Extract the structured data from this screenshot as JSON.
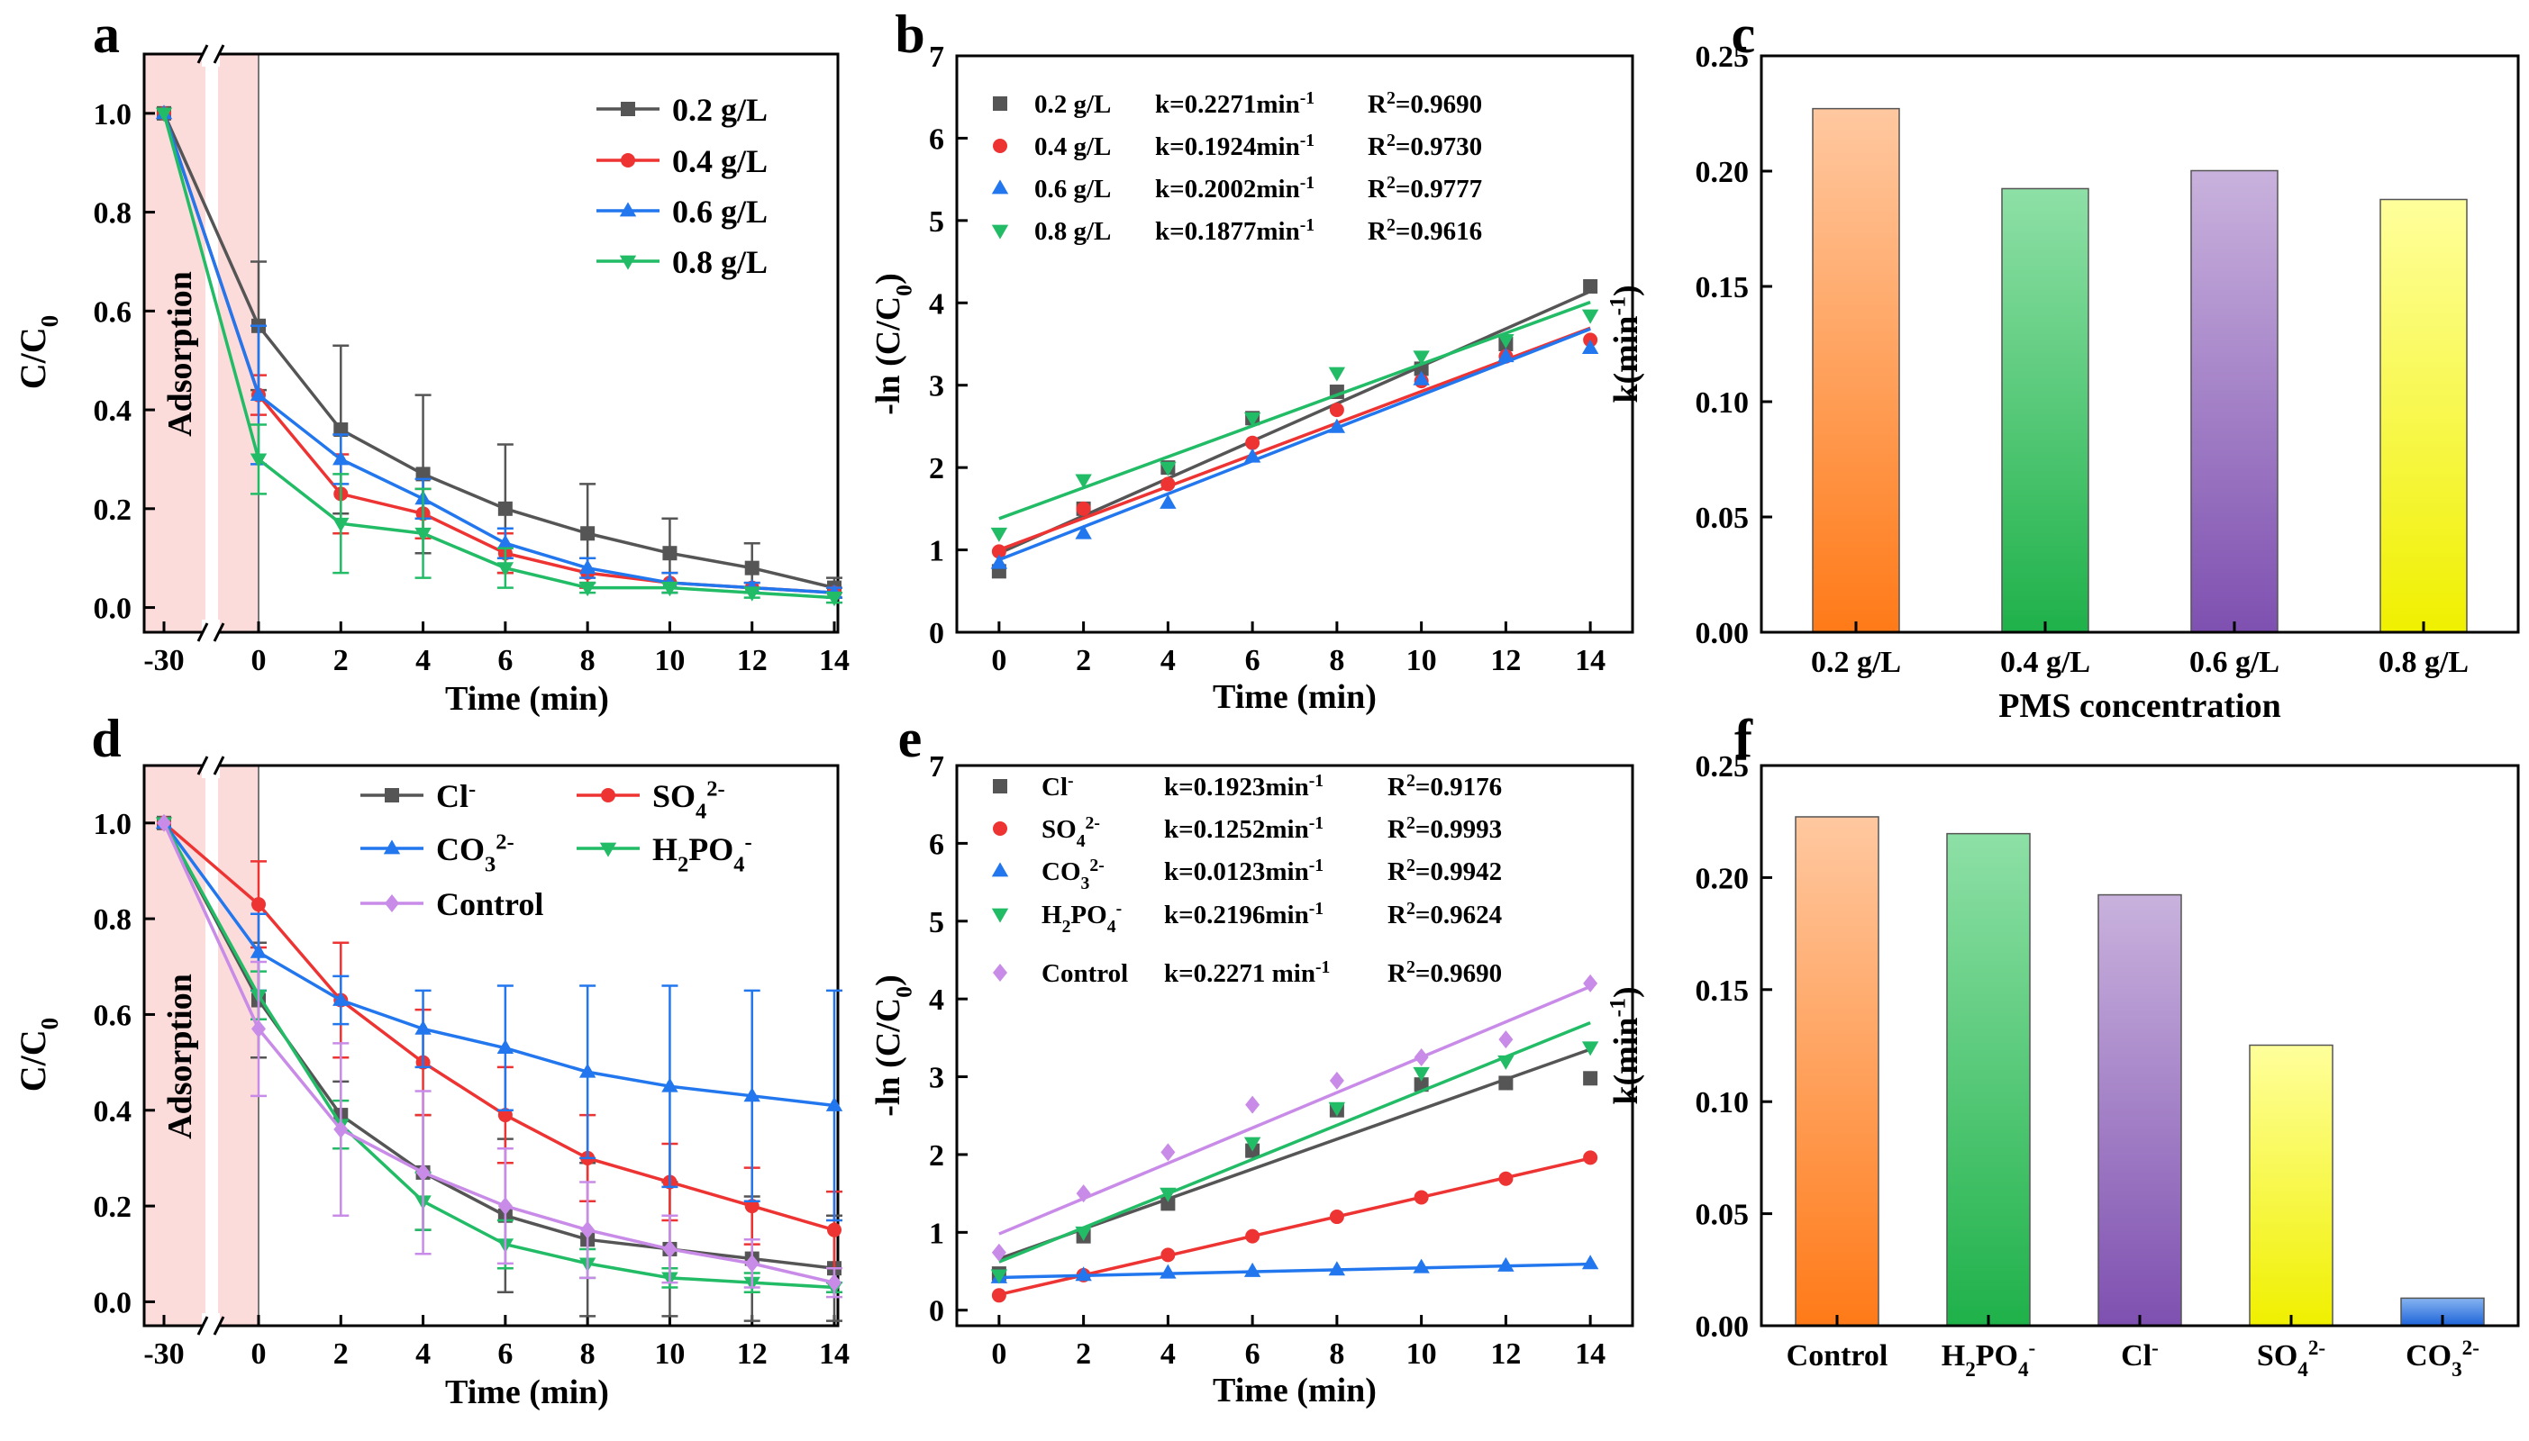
{
  "chart_data": [
    {
      "panel": "a",
      "type": "line",
      "xlabel": "Time (min)",
      "ylabel": "C/C0",
      "ylabel_main": "C/C",
      "ylabel_sub": "0",
      "x_break": true,
      "x": [
        -30,
        0,
        2,
        4,
        6,
        8,
        10,
        12,
        14
      ],
      "x_ticks": [
        -30,
        0,
        2,
        4,
        6,
        8,
        10,
        12,
        14
      ],
      "y_ticks": [
        0.0,
        0.2,
        0.4,
        0.6,
        0.8,
        1.0
      ],
      "y_tick_labels": [
        "0.0",
        "0.2",
        "0.4",
        "0.6",
        "0.8",
        "1.0"
      ],
      "ylim": [
        -0.05,
        1.12
      ],
      "shade_label": "Adsorption",
      "legend_position": "top-right",
      "series": [
        {
          "name": "0.2 g/L",
          "color": "#555555",
          "marker": "square",
          "values": [
            1.0,
            0.57,
            0.36,
            0.27,
            0.2,
            0.15,
            0.11,
            0.08,
            0.04
          ],
          "errors": [
            0,
            0.13,
            0.17,
            0.16,
            0.13,
            0.1,
            0.07,
            0.05,
            0.02
          ]
        },
        {
          "name": "0.4 g/L",
          "color": "#ee3333",
          "marker": "circle",
          "values": [
            1.0,
            0.43,
            0.23,
            0.19,
            0.11,
            0.07,
            0.05,
            0.04,
            0.03
          ],
          "errors": [
            0,
            0.04,
            0.08,
            0.05,
            0.04,
            0.03,
            0.02,
            0.01,
            0.01
          ]
        },
        {
          "name": "0.6 g/L",
          "color": "#2277ee",
          "marker": "triangle-up",
          "values": [
            1.0,
            0.43,
            0.3,
            0.22,
            0.13,
            0.08,
            0.05,
            0.04,
            0.03
          ],
          "errors": [
            0,
            0.14,
            0.05,
            0.04,
            0.03,
            0.02,
            0.02,
            0.01,
            0.01
          ]
        },
        {
          "name": "0.8 g/L",
          "color": "#22bb66",
          "marker": "triangle-down",
          "values": [
            1.0,
            0.3,
            0.17,
            0.15,
            0.08,
            0.04,
            0.04,
            0.03,
            0.02
          ],
          "errors": [
            0,
            0.07,
            0.1,
            0.09,
            0.04,
            0.01,
            0.01,
            0.01,
            0.01
          ]
        }
      ]
    },
    {
      "panel": "b",
      "type": "scatter",
      "xlabel": "Time (min)",
      "ylabel": "-ln (C/C0)",
      "ylabel_main": "-ln (C/C",
      "ylabel_sub": "0",
      "ylabel_end": ")",
      "x": [
        0,
        2,
        4,
        6,
        8,
        10,
        12,
        14
      ],
      "x_ticks": [
        0,
        2,
        4,
        6,
        8,
        10,
        12,
        14
      ],
      "y_ticks": [
        0,
        1,
        2,
        3,
        4,
        5,
        6,
        7
      ],
      "ylim": [
        0,
        7
      ],
      "xlim": [
        -1,
        15
      ],
      "legend_position": "top-left",
      "series": [
        {
          "name": "0.2 g/L",
          "color": "#555555",
          "marker": "square",
          "values": [
            0.74,
            1.5,
            2.0,
            2.6,
            2.92,
            3.2,
            3.5,
            4.2
          ],
          "fit": {
            "intercept": 0.96,
            "slope": 0.2271
          },
          "k": "k=0.2271min",
          "k_sup": "-1",
          "r2": "=0.9690"
        },
        {
          "name": "0.4 g/L",
          "color": "#ee3333",
          "marker": "circle",
          "values": [
            0.98,
            1.5,
            1.8,
            2.3,
            2.7,
            3.05,
            3.35,
            3.55
          ],
          "fit": {
            "intercept": 1.0,
            "slope": 0.1924
          },
          "k": "k=0.1924min",
          "k_sup": "-1",
          "r2": "=0.9730"
        },
        {
          "name": "0.6 g/L",
          "color": "#2277ee",
          "marker": "triangle-up",
          "values": [
            0.84,
            1.2,
            1.57,
            2.13,
            2.49,
            3.07,
            3.35,
            3.45
          ],
          "fit": {
            "intercept": 0.88,
            "slope": 0.2002
          },
          "k": "k=0.2002min",
          "k_sup": "-1",
          "r2": "=0.9777"
        },
        {
          "name": "0.8 g/L",
          "color": "#22bb66",
          "marker": "triangle-down",
          "values": [
            1.2,
            1.85,
            2.0,
            2.6,
            3.15,
            3.35,
            3.55,
            3.85
          ],
          "fit": {
            "intercept": 1.38,
            "slope": 0.1877
          },
          "k": "k=0.1877min",
          "k_sup": "-1",
          "r2": "=0.9616"
        }
      ]
    },
    {
      "panel": "c",
      "type": "bar",
      "xlabel": "PMS concentration",
      "ylabel": "k(min-1)",
      "ylabel_main": "k(min",
      "ylabel_sup": "-1",
      "ylabel_end": ")",
      "categories": [
        "0.2 g/L",
        "0.4 g/L",
        "0.6 g/L",
        "0.8 g/L"
      ],
      "values": [
        0.2271,
        0.1924,
        0.2002,
        0.1877
      ],
      "colors": [
        [
          "#ff7a18",
          "#ffc8a0"
        ],
        [
          "#1fb14a",
          "#8ee0a6"
        ],
        [
          "#7e50b0",
          "#c9b2dd"
        ],
        [
          "#f0f000",
          "#ffff9c"
        ]
      ],
      "y_ticks": [
        0.0,
        0.05,
        0.1,
        0.15,
        0.2,
        0.25
      ],
      "y_tick_labels": [
        "0.00",
        "0.05",
        "0.10",
        "0.15",
        "0.20",
        "0.25"
      ],
      "ylim": [
        0,
        0.25
      ]
    },
    {
      "panel": "d",
      "type": "line",
      "xlabel": "Time (min)",
      "ylabel": "C/C0",
      "ylabel_main": "C/C",
      "ylabel_sub": "0",
      "x_break": true,
      "x": [
        -30,
        0,
        2,
        4,
        6,
        8,
        10,
        12,
        14
      ],
      "x_ticks": [
        -30,
        0,
        2,
        4,
        6,
        8,
        10,
        12,
        14
      ],
      "y_ticks": [
        0.0,
        0.2,
        0.4,
        0.6,
        0.8,
        1.0
      ],
      "y_tick_labels": [
        "0.0",
        "0.2",
        "0.4",
        "0.6",
        "0.8",
        "1.0"
      ],
      "ylim": [
        -0.05,
        1.12
      ],
      "shade_label": "Adsorption",
      "legend_position": "top",
      "series": [
        {
          "name": "Cl",
          "sup": "-",
          "color": "#555555",
          "marker": "square",
          "values": [
            1.0,
            0.63,
            0.39,
            0.27,
            0.18,
            0.13,
            0.11,
            0.09,
            0.07
          ],
          "errors": [
            0,
            0.12,
            0.07,
            0.12,
            0.16,
            0.16,
            0.14,
            0.13,
            0.11
          ]
        },
        {
          "name": "SO",
          "sub": "4",
          "sup": "2-",
          "color": "#ee3333",
          "marker": "circle",
          "values": [
            1.0,
            0.83,
            0.63,
            0.5,
            0.39,
            0.3,
            0.25,
            0.2,
            0.15
          ],
          "errors": [
            0,
            0.09,
            0.12,
            0.11,
            0.1,
            0.09,
            0.08,
            0.08,
            0.08
          ]
        },
        {
          "name": "CO",
          "sub": "3",
          "sup": "2-",
          "color": "#2277ee",
          "marker": "triangle-up",
          "values": [
            1.0,
            0.73,
            0.63,
            0.57,
            0.53,
            0.48,
            0.45,
            0.43,
            0.41
          ],
          "errors": [
            0,
            0.08,
            0.05,
            0.08,
            0.13,
            0.18,
            0.21,
            0.22,
            0.24
          ]
        },
        {
          "name": "H",
          "sub": "2",
          "name2": "PO",
          "sub2": "4",
          "sup": "-",
          "color": "#22bb66",
          "marker": "triangle-down",
          "values": [
            1.0,
            0.64,
            0.37,
            0.21,
            0.12,
            0.08,
            0.05,
            0.04,
            0.03
          ],
          "errors": [
            0,
            0.05,
            0.05,
            0.06,
            0.05,
            0.03,
            0.02,
            0.02,
            0.01
          ]
        },
        {
          "name": "Control",
          "color": "#c98be8",
          "marker": "diamond",
          "values": [
            1.0,
            0.57,
            0.36,
            0.27,
            0.2,
            0.15,
            0.11,
            0.08,
            0.04
          ],
          "errors": [
            0,
            0.14,
            0.18,
            0.17,
            0.12,
            0.1,
            0.07,
            0.05,
            0.03
          ]
        }
      ]
    },
    {
      "panel": "e",
      "type": "scatter",
      "xlabel": "Time (min)",
      "ylabel": "-ln (C/C0)",
      "ylabel_main": "-ln (C/C",
      "ylabel_sub": "0",
      "ylabel_end": ")",
      "x": [
        0,
        2,
        4,
        6,
        8,
        10,
        12,
        14
      ],
      "x_ticks": [
        0,
        2,
        4,
        6,
        8,
        10,
        12,
        14
      ],
      "y_ticks": [
        0,
        1,
        2,
        3,
        4,
        5,
        6,
        7
      ],
      "ylim": [
        -0.2,
        7
      ],
      "xlim": [
        -1,
        15
      ],
      "legend_position": "top-left",
      "series": [
        {
          "name": "Cl",
          "sup": "-",
          "color": "#555555",
          "marker": "square",
          "values": [
            0.47,
            0.95,
            1.37,
            2.05,
            2.57,
            2.9,
            2.92,
            2.98
          ],
          "fit": {
            "intercept": 0.66,
            "slope": 0.1923
          },
          "k": "k=0.1923min",
          "k_sup": "-1",
          "r2": "=0.9176"
        },
        {
          "name": "SO",
          "sub": "4",
          "sup": "2-",
          "color": "#ee3333",
          "marker": "circle",
          "values": [
            0.19,
            0.45,
            0.71,
            0.95,
            1.2,
            1.45,
            1.69,
            1.96
          ],
          "fit": {
            "intercept": 0.2,
            "slope": 0.1252
          },
          "k": "k=0.1252min",
          "k_sup": "-1",
          "r2": "=0.9993"
        },
        {
          "name": "CO",
          "sub": "3",
          "sup": "2-",
          "color": "#2277ee",
          "marker": "triangle-up",
          "values": [
            0.42,
            0.45,
            0.48,
            0.5,
            0.52,
            0.55,
            0.57,
            0.6
          ],
          "fit": {
            "intercept": 0.42,
            "slope": 0.0123
          },
          "k": "k=0.0123min",
          "k_sup": "-1",
          "r2": "=0.9942"
        },
        {
          "name": "H",
          "sub": "2",
          "name2": "PO",
          "sub2": "4",
          "sup": "-",
          "color": "#22bb66",
          "marker": "triangle-down",
          "values": [
            0.45,
            1.0,
            1.5,
            2.15,
            2.6,
            3.05,
            3.2,
            3.38
          ],
          "fit": {
            "intercept": 0.62,
            "slope": 0.2196
          },
          "k": "k=0.2196min",
          "k_sup": "-1",
          "r2": "=0.9624"
        },
        {
          "name": "Control",
          "color": "#c98be8",
          "marker": "diamond",
          "values": [
            0.74,
            1.5,
            2.03,
            2.64,
            2.95,
            3.25,
            3.48,
            4.2
          ],
          "fit": {
            "intercept": 0.98,
            "slope": 0.2271
          },
          "k": "k=0.2271 min",
          "k_sup": "-1",
          "r2": "=0.9690"
        }
      ]
    },
    {
      "panel": "f",
      "type": "bar",
      "xlabel": "",
      "ylabel": "k(min-1)",
      "ylabel_main": "k(min",
      "ylabel_sup": "-1",
      "ylabel_end": ")",
      "categories": [
        {
          "t": "Control"
        },
        {
          "t": "H",
          "sub": "2",
          "t2": "PO",
          "sub2": "4",
          "sup": "-"
        },
        {
          "t": "Cl",
          "sup": "-"
        },
        {
          "t": "SO",
          "sub": "4",
          "sup": "2-"
        },
        {
          "t": "CO",
          "sub": "3",
          "sup": "2-"
        }
      ],
      "values": [
        0.2271,
        0.2196,
        0.1923,
        0.1252,
        0.0123
      ],
      "colors": [
        [
          "#ff7a18",
          "#ffc8a0"
        ],
        [
          "#1fb14a",
          "#8ee0a6"
        ],
        [
          "#7e50b0",
          "#c9b2dd"
        ],
        [
          "#f0f000",
          "#ffff9c"
        ],
        [
          "#1d63d9",
          "#86b4f0"
        ]
      ],
      "y_ticks": [
        0.0,
        0.05,
        0.1,
        0.15,
        0.2,
        0.25
      ],
      "y_tick_labels": [
        "0.00",
        "0.05",
        "0.10",
        "0.15",
        "0.20",
        "0.25"
      ],
      "ylim": [
        0,
        0.25
      ]
    }
  ],
  "panel_labels": [
    "a",
    "b",
    "c",
    "d",
    "e",
    "f"
  ]
}
